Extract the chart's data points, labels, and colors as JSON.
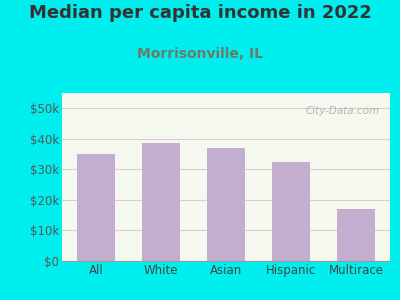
{
  "title": "Median per capita income in 2022",
  "subtitle": "Morrisonville, IL",
  "categories": [
    "All",
    "White",
    "Asian",
    "Hispanic",
    "Multirace"
  ],
  "values": [
    35000,
    38500,
    37000,
    32500,
    17000
  ],
  "bar_color": "#c4aed0",
  "title_color": "#333333",
  "subtitle_color": "#6b7b6b",
  "bg_outer": "#00eeee",
  "ytick_color": "#555555",
  "xtick_color": "#444444",
  "ylim": [
    0,
    55000
  ],
  "yticks": [
    0,
    10000,
    20000,
    30000,
    40000,
    50000
  ],
  "watermark": "City-Data.com",
  "watermark_color": "#aaaaaa",
  "grid_color": "#ddcccc",
  "title_fontsize": 13,
  "subtitle_fontsize": 10
}
